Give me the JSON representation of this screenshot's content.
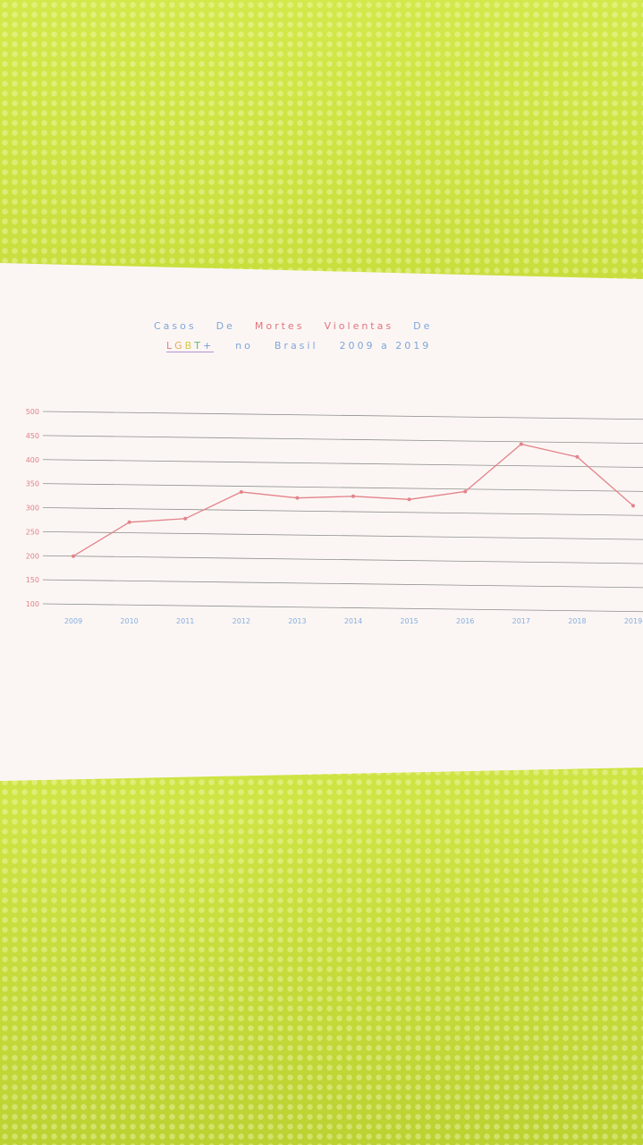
{
  "chart_data": {
    "type": "line",
    "title_parts": [
      {
        "text": "Casos",
        "color": "blue"
      },
      {
        "text": "De",
        "color": "blue"
      },
      {
        "text": "Mortes",
        "color": "red"
      },
      {
        "text": "Violentas",
        "color": "red"
      },
      {
        "text": "De",
        "color": "blue"
      }
    ],
    "subtitle_parts": [
      {
        "text": "LGBT+",
        "color": "rainbow"
      },
      {
        "text": "no",
        "color": "blue"
      },
      {
        "text": "Brasil",
        "color": "blue"
      },
      {
        "text": "2009 a 2019",
        "color": "blue"
      }
    ],
    "x": [
      "2009",
      "2010",
      "2011",
      "2012",
      "2013",
      "2014",
      "2015",
      "2016",
      "2017",
      "2018",
      "2019"
    ],
    "series": [
      {
        "values": [
          200,
          272,
          281,
          338,
          327,
          332,
          327,
          345,
          445,
          420,
          320
        ]
      }
    ],
    "y_ticks": [
      "100",
      "150",
      "200",
      "250",
      "300",
      "350",
      "400",
      "450",
      "500"
    ],
    "ylim": [
      100,
      500
    ],
    "grid": true,
    "line_color": "#e3838a",
    "paper_color": "#fbf6f4",
    "background_color": "#c9de3c"
  }
}
